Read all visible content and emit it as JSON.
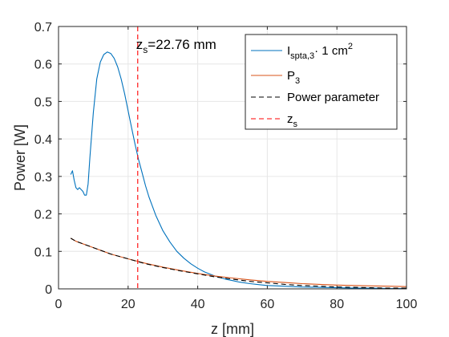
{
  "chart_data": {
    "type": "line",
    "xlabel": "z [mm]",
    "ylabel": "Power [W]",
    "xlim": [
      0,
      100
    ],
    "ylim": [
      0,
      0.7
    ],
    "xticks": [
      0,
      20,
      40,
      60,
      80,
      100
    ],
    "yticks": [
      0,
      0.1,
      0.2,
      0.3,
      0.4,
      0.5,
      0.6,
      0.7
    ],
    "grid": true,
    "legend_position": "top-right",
    "series": [
      {
        "name_main": "I",
        "name_sub": "spta,3",
        "name_rest": "· 1 cm",
        "name_sup": "2",
        "color": "#0072BD",
        "style": "solid",
        "x": [
          3.5,
          4.0,
          4.5,
          5.0,
          5.5,
          6.0,
          6.5,
          7.0,
          7.5,
          8.0,
          8.5,
          9.0,
          10.0,
          11.0,
          12.0,
          13.0,
          14.0,
          15.0,
          16.0,
          17.0,
          18.0,
          19.0,
          20.0,
          21.0,
          22.0,
          23.0,
          24.0,
          25.0,
          26.0,
          28.0,
          30.0,
          32.0,
          34.0,
          36.0,
          38.0,
          40.0,
          42.0,
          45.0,
          48.0,
          50.0,
          52.0,
          55.0,
          58.0,
          60.0,
          65.0,
          70.0,
          75.0,
          80.0,
          85.0,
          90.0,
          95.0,
          100.0
        ],
        "y": [
          0.305,
          0.315,
          0.29,
          0.27,
          0.265,
          0.27,
          0.265,
          0.26,
          0.25,
          0.25,
          0.28,
          0.35,
          0.47,
          0.56,
          0.605,
          0.625,
          0.632,
          0.628,
          0.615,
          0.592,
          0.56,
          0.52,
          0.475,
          0.43,
          0.385,
          0.345,
          0.31,
          0.275,
          0.245,
          0.195,
          0.155,
          0.125,
          0.1,
          0.082,
          0.067,
          0.055,
          0.045,
          0.034,
          0.026,
          0.022,
          0.018,
          0.014,
          0.011,
          0.009,
          0.007,
          0.005,
          0.004,
          0.003,
          0.002,
          0.002,
          0.001,
          0.001
        ]
      },
      {
        "name_main": "P",
        "name_sub": "3",
        "name_rest": "",
        "name_sup": "",
        "color": "#D95319",
        "style": "solid",
        "x": [
          3.5,
          5,
          10,
          15,
          20,
          25,
          30,
          35,
          40,
          45,
          50,
          55,
          60,
          65,
          70,
          75,
          80,
          85,
          90,
          95,
          100
        ],
        "y": [
          0.135,
          0.127,
          0.11,
          0.093,
          0.08,
          0.068,
          0.058,
          0.049,
          0.041,
          0.034,
          0.029,
          0.024,
          0.02,
          0.017,
          0.014,
          0.012,
          0.01,
          0.009,
          0.008,
          0.007,
          0.006
        ]
      },
      {
        "name_main": "Power parameter",
        "name_sub": "",
        "name_rest": "",
        "name_sup": "",
        "color": "#000000",
        "style": "dashed",
        "x": [
          3.5,
          5,
          10,
          15,
          20,
          25,
          30,
          35,
          40,
          45,
          50,
          55,
          60,
          65,
          70,
          75,
          80,
          85,
          90,
          95,
          100
        ],
        "y": [
          0.135,
          0.127,
          0.11,
          0.093,
          0.08,
          0.067,
          0.057,
          0.048,
          0.04,
          0.032,
          0.026,
          0.02,
          0.016,
          0.012,
          0.009,
          0.007,
          0.005,
          0.004,
          0.003,
          0.002,
          0.002
        ]
      }
    ],
    "vline": {
      "name_main": "z",
      "name_sub": "s",
      "x": 22.76,
      "color": "#FF0000",
      "style": "dashed"
    },
    "annotation": {
      "main": "z",
      "sub": "s",
      "rest": "=22.76 mm",
      "x": 22.76,
      "y": 0.64
    }
  }
}
